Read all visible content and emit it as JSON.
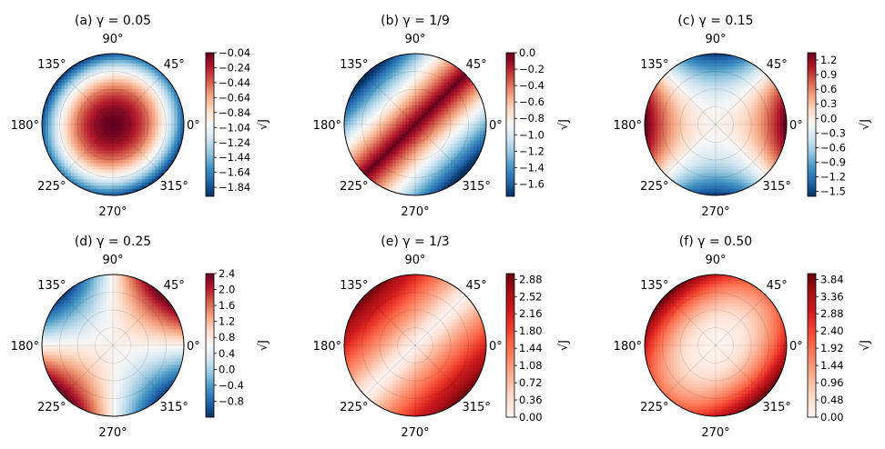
{
  "chart_data": [
    {
      "type": "heatmap",
      "projection": "polar",
      "title": "(a) γ = 0.05",
      "angle_labels": [
        "0°",
        "45°",
        "90°",
        "135°",
        "180°",
        "225°",
        "270°",
        "315°"
      ],
      "colorbar_label": "√J",
      "colorbar_ticks": [
        "−0.04",
        "−0.24",
        "−0.44",
        "−0.64",
        "−0.84",
        "−1.04",
        "−1.24",
        "−1.44",
        "−1.64",
        "−1.84"
      ],
      "colorbar_range": [
        -1.96,
        -0.04
      ],
      "field": {
        "min": -1.96,
        "max": -0.04,
        "pattern": "bowl",
        "orientation_deg": 45,
        "aspect": 0.85
      },
      "colormap": "RdBu_r"
    },
    {
      "type": "heatmap",
      "projection": "polar",
      "title": "(b) γ = 1/9",
      "angle_labels": [
        "0°",
        "45°",
        "90°",
        "135°",
        "180°",
        "225°",
        "270°",
        "315°"
      ],
      "colorbar_label": "√J",
      "colorbar_ticks": [
        "0.0",
        "−0.2",
        "−0.4",
        "−0.6",
        "−0.8",
        "−1.0",
        "−1.2",
        "−1.4",
        "−1.6"
      ],
      "colorbar_range": [
        -1.75,
        0.0
      ],
      "field": {
        "min": -1.75,
        "max": 0.0,
        "pattern": "valley",
        "orientation_deg": 45
      },
      "colormap": "RdBu_r"
    },
    {
      "type": "heatmap",
      "projection": "polar",
      "title": "(c) γ = 0.15",
      "angle_labels": [
        "0°",
        "45°",
        "90°",
        "135°",
        "180°",
        "225°",
        "270°",
        "315°"
      ],
      "colorbar_label": "√J",
      "colorbar_ticks": [
        "1.2",
        "0.9",
        "0.6",
        "0.3",
        "0.0",
        "−0.3",
        "−0.6",
        "−0.9",
        "−1.2",
        "−1.5"
      ],
      "colorbar_range": [
        -1.6,
        1.35
      ],
      "field": {
        "min": -1.6,
        "max": 1.35,
        "pattern": "saddle",
        "orientation_deg": 0
      },
      "colormap": "RdBu_r"
    },
    {
      "type": "heatmap",
      "projection": "polar",
      "title": "(d) γ = 0.25",
      "angle_labels": [
        "0°",
        "45°",
        "90°",
        "135°",
        "180°",
        "225°",
        "270°",
        "315°"
      ],
      "colorbar_label": "√J",
      "colorbar_ticks": [
        "2.4",
        "2.0",
        "1.6",
        "1.2",
        "0.8",
        "0.4",
        "0.0",
        "−0.4",
        "−0.8"
      ],
      "colorbar_range": [
        -1.2,
        2.4
      ],
      "field": {
        "min": -1.2,
        "max": 2.4,
        "pattern": "saddle",
        "orientation_deg": 45
      },
      "colormap": "RdBu_r"
    },
    {
      "type": "heatmap",
      "projection": "polar",
      "title": "(e) γ = 1/3",
      "angle_labels": [
        "0°",
        "45°",
        "90°",
        "135°",
        "180°",
        "225°",
        "270°",
        "315°"
      ],
      "colorbar_label": "√J",
      "colorbar_ticks": [
        "2.88",
        "2.52",
        "2.16",
        "1.80",
        "1.44",
        "1.08",
        "0.72",
        "0.36",
        "0.00"
      ],
      "colorbar_range": [
        0.0,
        3.0
      ],
      "field": {
        "min": 0.0,
        "max": 3.0,
        "pattern": "ridge",
        "orientation_deg": 45
      },
      "colormap": "Reds"
    },
    {
      "type": "heatmap",
      "projection": "polar",
      "title": "(f) γ = 0.50",
      "angle_labels": [
        "0°",
        "45°",
        "90°",
        "135°",
        "180°",
        "225°",
        "270°",
        "315°"
      ],
      "colorbar_label": "√J",
      "colorbar_ticks": [
        "3.84",
        "3.36",
        "2.88",
        "2.40",
        "1.92",
        "1.44",
        "0.96",
        "0.48",
        "0.00"
      ],
      "colorbar_range": [
        0.0,
        4.0
      ],
      "field": {
        "min": 0.0,
        "max": 4.0,
        "pattern": "dome",
        "orientation_deg": 45,
        "aspect": 0.45
      },
      "colormap": "Reds"
    }
  ]
}
